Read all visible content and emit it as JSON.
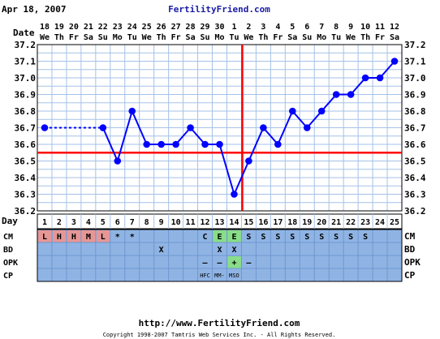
{
  "header": {
    "date": "Apr 18, 2007",
    "site_name": "FertilityFriend.com"
  },
  "footer": {
    "url": "http://www.FertilityFriend.com",
    "copyright": "Copyright 1998-2007 Tamtris Web Services Inc. - All Rights Reserved."
  },
  "chart_data": {
    "type": "line",
    "x_dates": [
      "18",
      "19",
      "20",
      "21",
      "22",
      "23",
      "24",
      "25",
      "26",
      "27",
      "28",
      "29",
      "30",
      "1",
      "2",
      "3",
      "4",
      "5",
      "6",
      "7",
      "8",
      "9",
      "10",
      "11",
      "12"
    ],
    "x_weekdays": [
      "We",
      "Th",
      "Fr",
      "Sa",
      "Su",
      "Mo",
      "Tu",
      "We",
      "Th",
      "Fr",
      "Sa",
      "Su",
      "Mo",
      "Tu",
      "We",
      "Th",
      "Fr",
      "Sa",
      "Su",
      "Mo",
      "Tu",
      "We",
      "Th",
      "Fr",
      "Sa"
    ],
    "cycle_days": [
      "1",
      "2",
      "3",
      "4",
      "5",
      "6",
      "7",
      "8",
      "9",
      "10",
      "11",
      "12",
      "13",
      "14",
      "15",
      "16",
      "17",
      "18",
      "19",
      "20",
      "21",
      "22",
      "23",
      "24",
      "25"
    ],
    "temperatures": [
      36.7,
      null,
      null,
      null,
      36.7,
      36.5,
      36.8,
      36.6,
      36.6,
      36.6,
      36.7,
      36.6,
      36.6,
      36.3,
      36.5,
      36.7,
      36.6,
      36.8,
      36.7,
      36.8,
      36.9,
      36.9,
      37.0,
      37.0,
      37.1
    ],
    "y_ticks": [
      "37.2",
      "37.1",
      "37.0",
      "36.9",
      "36.8",
      "36.7",
      "36.6",
      "36.5",
      "36.4",
      "36.3",
      "36.2"
    ],
    "ylim": [
      36.2,
      37.2
    ],
    "coverline": 36.55,
    "ovulation_day_index": 14,
    "labels": {
      "date": "Date",
      "day": "Day",
      "cm": "CM",
      "bd": "BD",
      "opk": "OPK",
      "cp": "CP"
    },
    "cm_row": [
      "L",
      "H",
      "H",
      "M",
      "L",
      "*",
      "*",
      "",
      "",
      "",
      "",
      "C",
      "E",
      "E",
      "S",
      "S",
      "S",
      "S",
      "S",
      "S",
      "S",
      "S",
      "S",
      "",
      ""
    ],
    "bd_row": [
      "",
      "",
      "",
      "",
      "",
      "",
      "",
      "",
      "X",
      "",
      "",
      "",
      "X",
      "X",
      "",
      "",
      "",
      "",
      "",
      "",
      "",
      "",
      "",
      "",
      ""
    ],
    "opk_row": [
      "",
      "",
      "",
      "",
      "",
      "",
      "",
      "",
      "",
      "",
      "",
      "–",
      "–",
      "+",
      "–",
      "",
      "",
      "",
      "",
      "",
      "",
      "",
      "",
      "",
      ""
    ],
    "cp_row": [
      "",
      "",
      "",
      "",
      "",
      "",
      "",
      "",
      "",
      "",
      "",
      "HFC",
      "MM-",
      "MSO",
      "",
      "",
      "",
      "",
      "",
      "",
      "",
      "",
      "",
      "",
      ""
    ],
    "colors": {
      "line": "#0000ff",
      "coverline": "#ff0000",
      "grid_bg": "#ffffff",
      "grid_line": "#a5c1e8",
      "fertility_bg": "#8fb4e4",
      "fertility_grid": "#6f97cf",
      "menses": "#e79696",
      "fertile": "#88dd88",
      "title_blue": "#1a1aa6"
    }
  }
}
